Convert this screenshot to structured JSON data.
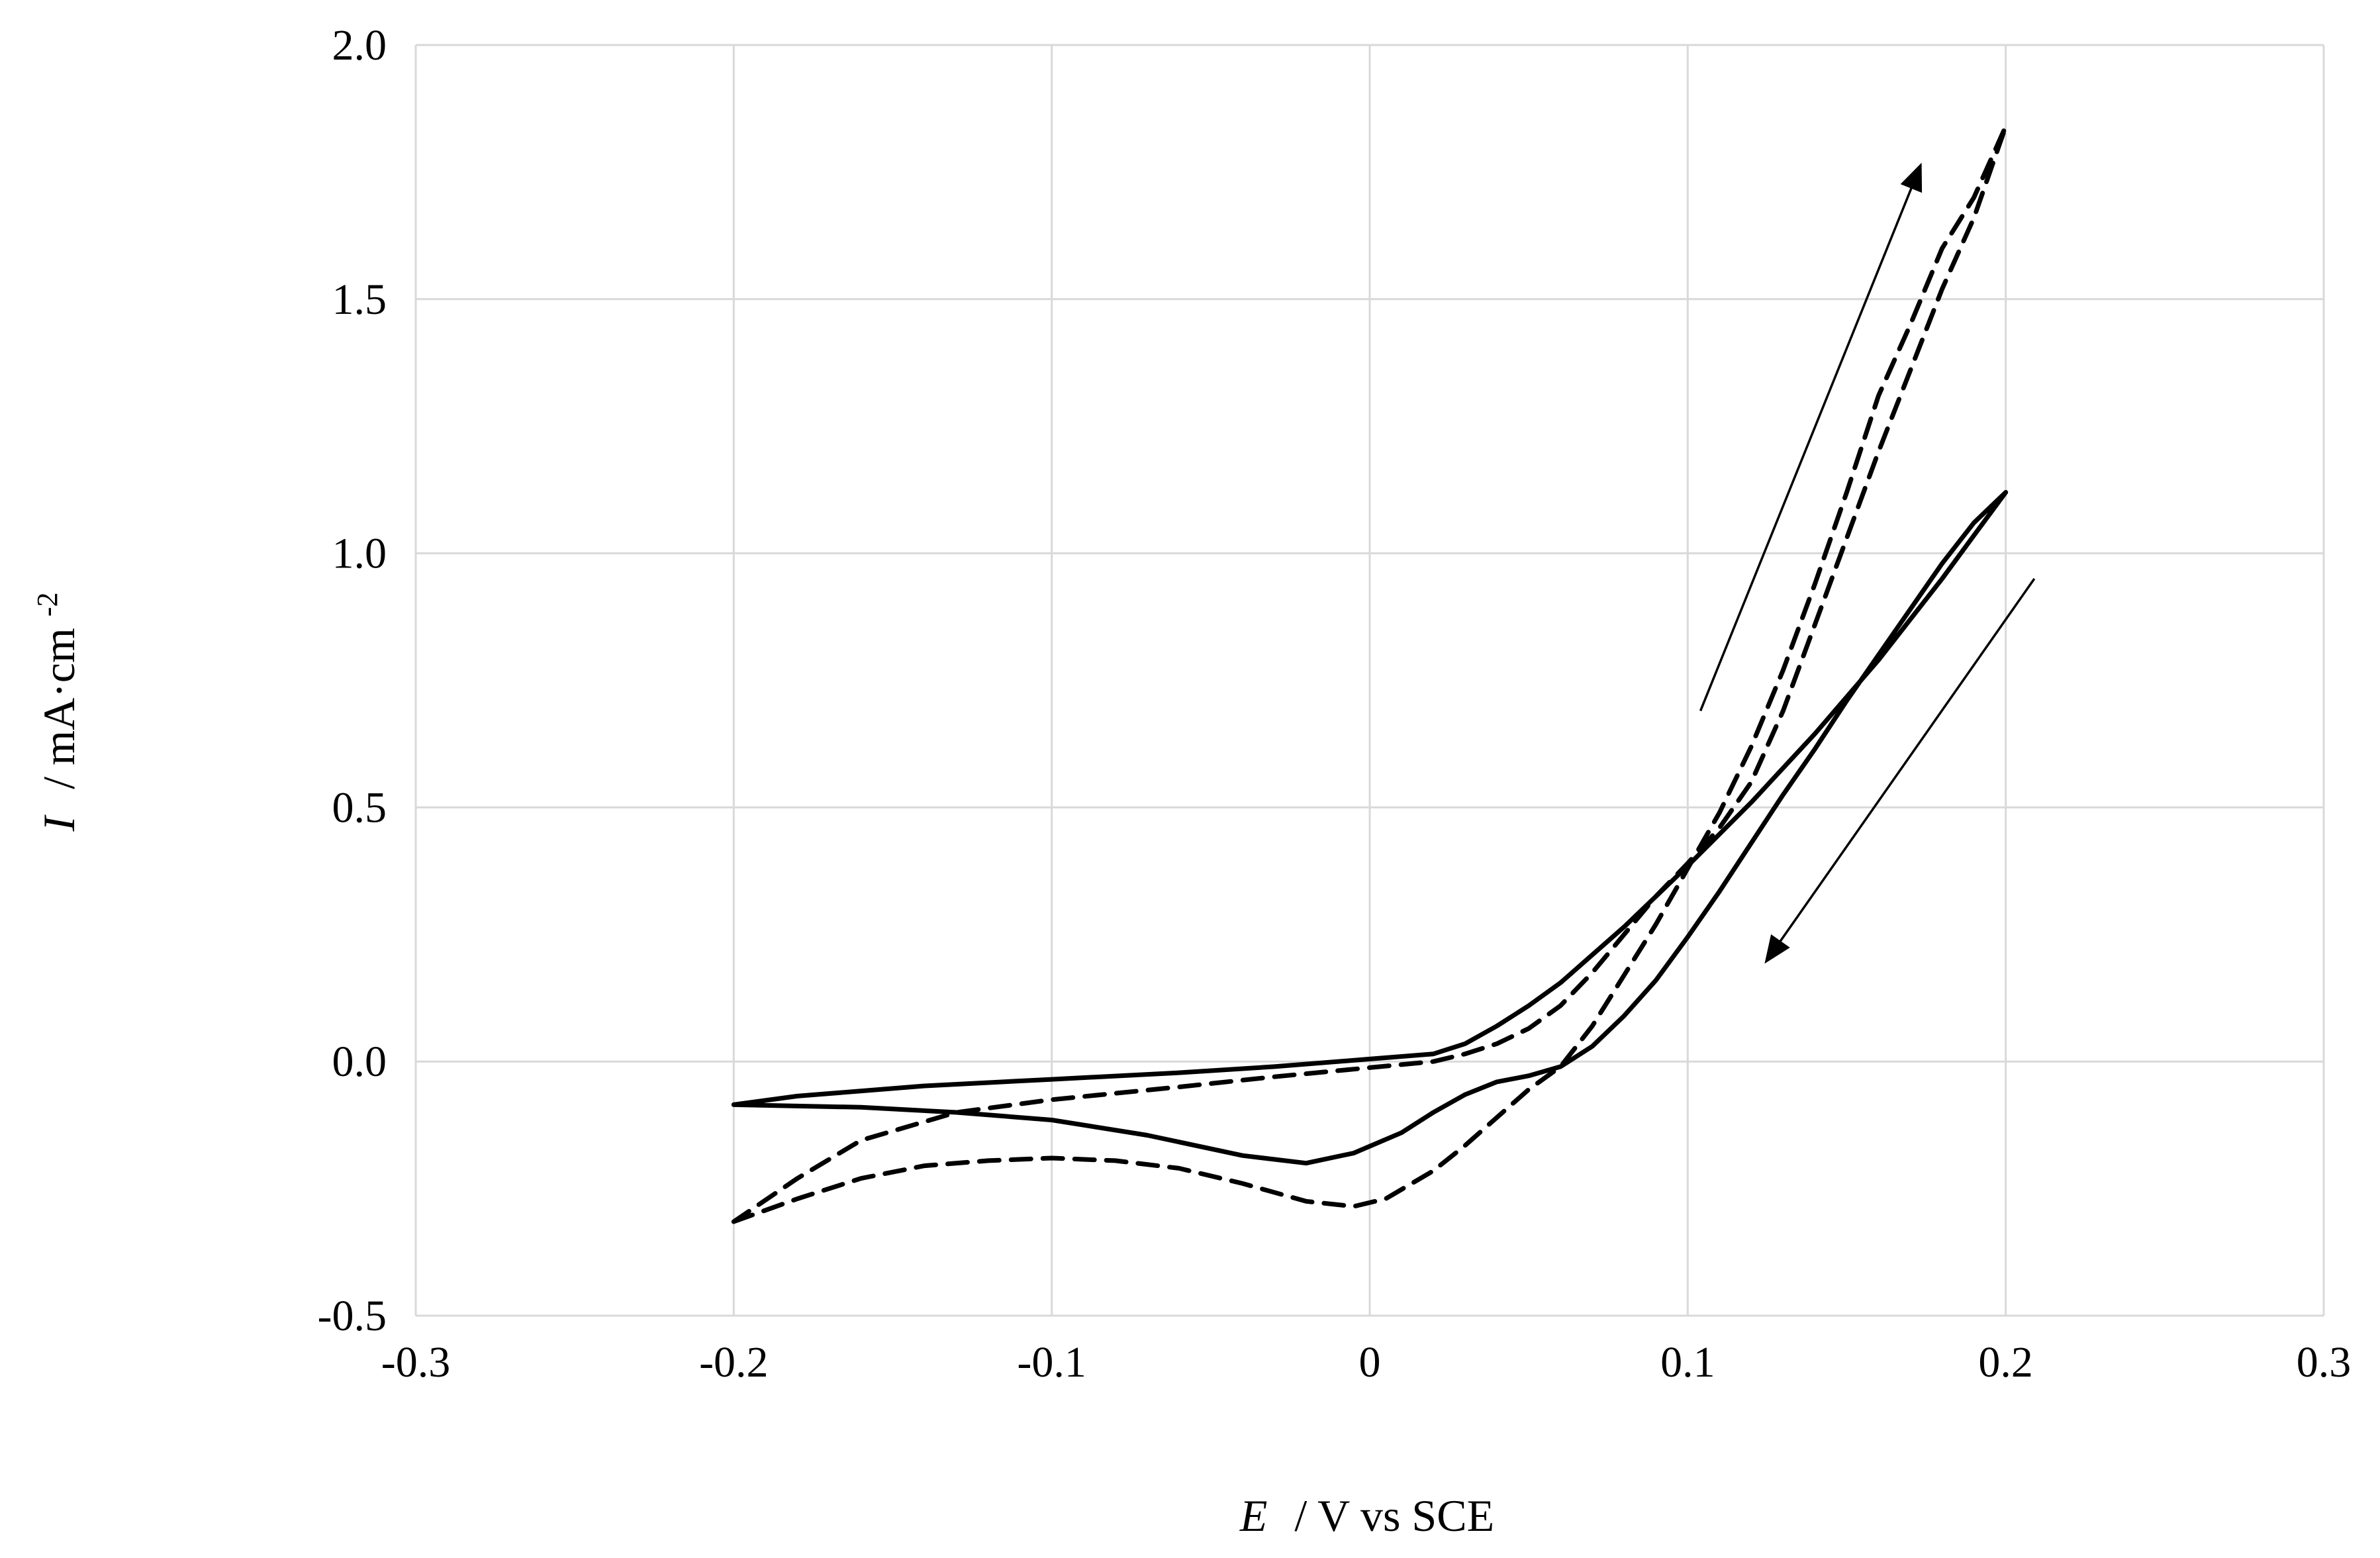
{
  "chart_data": {
    "type": "line",
    "xlabel": {
      "symbol": "E",
      "rest": "/  V  vs SCE"
    },
    "ylabel": {
      "symbol": "I",
      "rest": "/  mA·cm",
      "sup": "-2"
    },
    "xlim": [
      -0.3,
      0.3
    ],
    "ylim": [
      -0.5,
      2.0
    ],
    "xticks": [
      -0.3,
      -0.2,
      -0.1,
      0,
      0.1,
      0.2,
      0.3
    ],
    "xtick_labels": [
      "-0.3",
      "-0.2",
      "-0.1",
      "0",
      "0.1",
      "0.2",
      "0.3"
    ],
    "yticks": [
      -0.5,
      0.0,
      0.5,
      1.0,
      1.5,
      2.0
    ],
    "ytick_labels": [
      "-0.5",
      "0.0",
      "0.5",
      "1.0",
      "1.5",
      "2.0"
    ],
    "grid": true,
    "series": [
      {
        "style": "solid",
        "points": [
          [
            -0.2,
            -0.085
          ],
          [
            -0.16,
            -0.09
          ],
          [
            -0.13,
            -0.1
          ],
          [
            -0.1,
            -0.115
          ],
          [
            -0.07,
            -0.145
          ],
          [
            -0.04,
            -0.185
          ],
          [
            -0.02,
            -0.2
          ],
          [
            -0.005,
            -0.18
          ],
          [
            0.01,
            -0.14
          ],
          [
            0.02,
            -0.1
          ],
          [
            0.03,
            -0.065
          ],
          [
            0.04,
            -0.04
          ],
          [
            0.05,
            -0.028
          ],
          [
            0.06,
            -0.01
          ],
          [
            0.07,
            0.03
          ],
          [
            0.08,
            0.09
          ],
          [
            0.09,
            0.16
          ],
          [
            0.1,
            0.245
          ],
          [
            0.11,
            0.335
          ],
          [
            0.12,
            0.43
          ],
          [
            0.13,
            0.525
          ],
          [
            0.14,
            0.615
          ],
          [
            0.15,
            0.71
          ],
          [
            0.16,
            0.8
          ],
          [
            0.17,
            0.89
          ],
          [
            0.18,
            0.98
          ],
          [
            0.19,
            1.06
          ],
          [
            0.2,
            1.12
          ],
          [
            0.19,
            1.035
          ],
          [
            0.18,
            0.95
          ],
          [
            0.16,
            0.79
          ],
          [
            0.14,
            0.645
          ],
          [
            0.12,
            0.51
          ],
          [
            0.1,
            0.385
          ],
          [
            0.08,
            0.265
          ],
          [
            0.06,
            0.155
          ],
          [
            0.05,
            0.11
          ],
          [
            0.04,
            0.07
          ],
          [
            0.03,
            0.035
          ],
          [
            0.02,
            0.015
          ],
          [
            0.0,
            0.005
          ],
          [
            -0.03,
            -0.01
          ],
          [
            -0.06,
            -0.022
          ],
          [
            -0.1,
            -0.035
          ],
          [
            -0.14,
            -0.048
          ],
          [
            -0.18,
            -0.068
          ],
          [
            -0.2,
            -0.085
          ]
        ]
      },
      {
        "style": "dashed",
        "points": [
          [
            -0.2,
            -0.315
          ],
          [
            -0.18,
            -0.27
          ],
          [
            -0.16,
            -0.23
          ],
          [
            -0.14,
            -0.205
          ],
          [
            -0.12,
            -0.195
          ],
          [
            -0.1,
            -0.19
          ],
          [
            -0.08,
            -0.195
          ],
          [
            -0.06,
            -0.21
          ],
          [
            -0.04,
            -0.24
          ],
          [
            -0.02,
            -0.275
          ],
          [
            -0.005,
            -0.285
          ],
          [
            0.005,
            -0.27
          ],
          [
            0.02,
            -0.215
          ],
          [
            0.03,
            -0.165
          ],
          [
            0.04,
            -0.11
          ],
          [
            0.05,
            -0.055
          ],
          [
            0.06,
            -0.01
          ],
          [
            0.07,
            0.07
          ],
          [
            0.08,
            0.17
          ],
          [
            0.09,
            0.27
          ],
          [
            0.1,
            0.38
          ],
          [
            0.11,
            0.49
          ],
          [
            0.12,
            0.62
          ],
          [
            0.13,
            0.77
          ],
          [
            0.14,
            0.94
          ],
          [
            0.15,
            1.12
          ],
          [
            0.16,
            1.31
          ],
          [
            0.17,
            1.45
          ],
          [
            0.18,
            1.6
          ],
          [
            0.19,
            1.7
          ],
          [
            0.2,
            1.84
          ],
          [
            0.19,
            1.66
          ],
          [
            0.18,
            1.52
          ],
          [
            0.17,
            1.36
          ],
          [
            0.16,
            1.2
          ],
          [
            0.15,
            1.03
          ],
          [
            0.14,
            0.86
          ],
          [
            0.13,
            0.69
          ],
          [
            0.12,
            0.55
          ],
          [
            0.11,
            0.46
          ],
          [
            0.1,
            0.39
          ],
          [
            0.09,
            0.325
          ],
          [
            0.08,
            0.25
          ],
          [
            0.07,
            0.175
          ],
          [
            0.06,
            0.11
          ],
          [
            0.05,
            0.065
          ],
          [
            0.04,
            0.035
          ],
          [
            0.03,
            0.015
          ],
          [
            0.02,
            0.0
          ],
          [
            0.0,
            -0.012
          ],
          [
            -0.03,
            -0.03
          ],
          [
            -0.06,
            -0.05
          ],
          [
            -0.1,
            -0.075
          ],
          [
            -0.13,
            -0.1
          ],
          [
            -0.16,
            -0.155
          ],
          [
            -0.18,
            -0.23
          ],
          [
            -0.2,
            -0.315
          ]
        ]
      }
    ],
    "annotations": [
      {
        "kind": "arrow",
        "direction": "forward scan",
        "from": [
          0.104,
          0.69
        ],
        "to": [
          0.173,
          1.76
        ]
      },
      {
        "kind": "arrow",
        "direction": "reverse scan",
        "from": [
          0.209,
          0.95
        ],
        "to": [
          0.125,
          0.2
        ]
      }
    ]
  }
}
